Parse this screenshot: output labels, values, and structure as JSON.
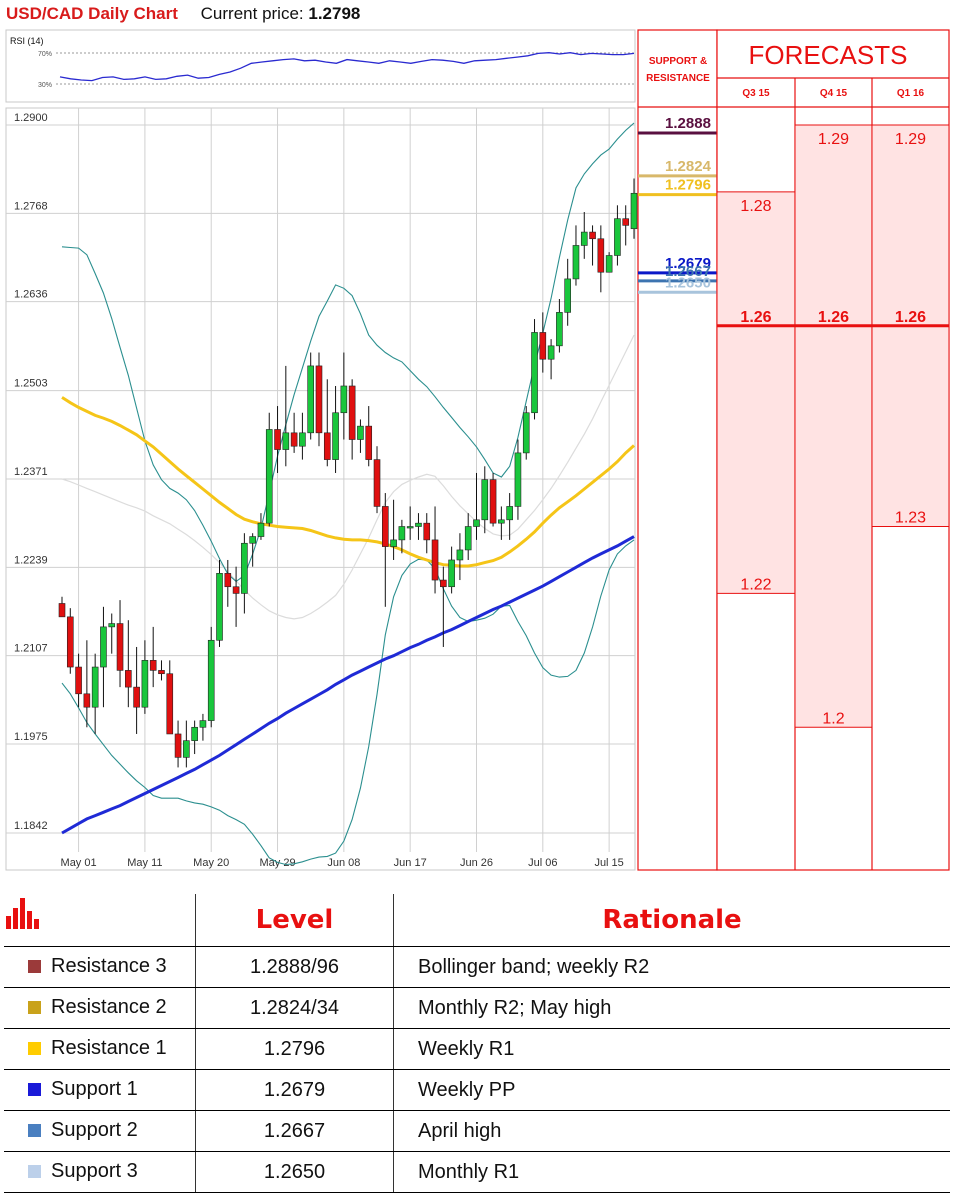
{
  "header": {
    "title": "USD/CAD Daily Chart",
    "price_label": "Current price:",
    "price_value": "1.2798"
  },
  "colors": {
    "accent": "#e81010",
    "bull": "#19c63c",
    "bear": "#e01010",
    "ma_fast": "#f5c518",
    "ma_slow": "#1f2ad6",
    "bollinger": "#2b8f8f",
    "forecast_fill": "#ffe3e3"
  },
  "chart_data": [
    {
      "type": "line",
      "title": "RSI (14)",
      "levels": [
        "70%",
        "30%"
      ],
      "ylim": [
        0,
        100
      ],
      "series": [
        {
          "values": [
            34,
            31,
            29,
            28,
            33,
            34,
            30,
            31,
            34,
            30,
            31,
            35,
            37,
            32,
            33,
            38,
            42,
            48,
            56,
            58,
            60,
            62,
            63,
            60,
            61,
            58,
            56,
            62,
            60,
            58,
            56,
            60,
            58,
            56,
            59,
            62,
            61,
            59,
            56,
            60,
            61,
            62,
            64,
            66,
            68,
            72,
            73,
            71,
            73,
            70,
            72,
            71,
            70,
            70,
            72
          ]
        }
      ]
    },
    {
      "type": "candlestick",
      "x_ticks": [
        "May 01",
        "May 11",
        "May 20",
        "May 29",
        "Jun 08",
        "Jun 17",
        "Jun 26",
        "Jul 06",
        "Jul 15"
      ],
      "y_ticks": [
        "1.2900",
        "1.2768",
        "1.2636",
        "1.2503",
        "1.2371",
        "1.2239",
        "1.2107",
        "1.1975",
        "1.1842"
      ],
      "ylim": [
        1.1842,
        1.29
      ],
      "candles": [
        [
          1.2185,
          1.2195,
          1.2165,
          1.2165
        ],
        [
          1.2165,
          1.2178,
          1.208,
          1.209
        ],
        [
          1.209,
          1.211,
          1.203,
          1.205
        ],
        [
          1.205,
          1.213,
          1.2,
          1.203
        ],
        [
          1.203,
          1.211,
          1.199,
          1.209
        ],
        [
          1.209,
          1.218,
          1.203,
          1.215
        ],
        [
          1.215,
          1.217,
          1.211,
          1.2155
        ],
        [
          1.2155,
          1.219,
          1.206,
          1.2085
        ],
        [
          1.2085,
          1.216,
          1.203,
          1.206
        ],
        [
          1.206,
          1.212,
          1.199,
          1.203
        ],
        [
          1.203,
          1.213,
          1.202,
          1.21
        ],
        [
          1.21,
          1.215,
          1.206,
          1.2085
        ],
        [
          1.2085,
          1.21,
          1.207,
          1.208
        ],
        [
          1.208,
          1.21,
          1.199,
          1.199
        ],
        [
          1.199,
          1.201,
          1.194,
          1.1955
        ],
        [
          1.1955,
          1.201,
          1.194,
          1.198
        ],
        [
          1.198,
          1.201,
          1.196,
          1.2
        ],
        [
          1.2,
          1.202,
          1.198,
          1.201
        ],
        [
          1.201,
          1.215,
          1.2,
          1.213
        ],
        [
          1.213,
          1.225,
          1.212,
          1.223
        ],
        [
          1.223,
          1.225,
          1.218,
          1.221
        ],
        [
          1.221,
          1.224,
          1.215,
          1.22
        ],
        [
          1.22,
          1.229,
          1.217,
          1.2275
        ],
        [
          1.2275,
          1.229,
          1.224,
          1.2285
        ],
        [
          1.2285,
          1.232,
          1.228,
          1.2305
        ],
        [
          1.2305,
          1.247,
          1.23,
          1.2445
        ],
        [
          1.2445,
          1.248,
          1.238,
          1.2415
        ],
        [
          1.2415,
          1.254,
          1.239,
          1.244
        ],
        [
          1.244,
          1.247,
          1.241,
          1.242
        ],
        [
          1.242,
          1.247,
          1.24,
          1.244
        ],
        [
          1.244,
          1.256,
          1.243,
          1.254
        ],
        [
          1.254,
          1.256,
          1.242,
          1.244
        ],
        [
          1.244,
          1.252,
          1.239,
          1.24
        ],
        [
          1.24,
          1.251,
          1.238,
          1.247
        ],
        [
          1.247,
          1.256,
          1.243,
          1.251
        ],
        [
          1.251,
          1.252,
          1.24,
          1.243
        ],
        [
          1.243,
          1.246,
          1.241,
          1.245
        ],
        [
          1.245,
          1.248,
          1.239,
          1.24
        ],
        [
          1.24,
          1.242,
          1.232,
          1.233
        ],
        [
          1.233,
          1.235,
          1.218,
          1.227
        ],
        [
          1.227,
          1.234,
          1.225,
          1.228
        ],
        [
          1.228,
          1.231,
          1.226,
          1.23
        ],
        [
          1.23,
          1.233,
          1.228,
          1.23
        ],
        [
          1.23,
          1.232,
          1.228,
          1.2305
        ],
        [
          1.2305,
          1.232,
          1.226,
          1.228
        ],
        [
          1.228,
          1.233,
          1.22,
          1.222
        ],
        [
          1.222,
          1.224,
          1.212,
          1.221
        ],
        [
          1.221,
          1.227,
          1.22,
          1.225
        ],
        [
          1.225,
          1.229,
          1.222,
          1.2265
        ],
        [
          1.2265,
          1.232,
          1.225,
          1.23
        ],
        [
          1.23,
          1.238,
          1.228,
          1.231
        ],
        [
          1.231,
          1.239,
          1.229,
          1.237
        ],
        [
          1.237,
          1.238,
          1.23,
          1.2305
        ],
        [
          1.2305,
          1.233,
          1.228,
          1.231
        ],
        [
          1.231,
          1.235,
          1.228,
          1.233
        ],
        [
          1.233,
          1.243,
          1.231,
          1.241
        ],
        [
          1.241,
          1.248,
          1.24,
          1.247
        ],
        [
          1.247,
          1.261,
          1.246,
          1.259
        ],
        [
          1.259,
          1.262,
          1.253,
          1.255
        ],
        [
          1.255,
          1.258,
          1.252,
          1.257
        ],
        [
          1.257,
          1.264,
          1.256,
          1.262
        ],
        [
          1.262,
          1.27,
          1.26,
          1.267
        ],
        [
          1.267,
          1.275,
          1.266,
          1.272
        ],
        [
          1.272,
          1.277,
          1.27,
          1.274
        ],
        [
          1.274,
          1.275,
          1.269,
          1.273
        ],
        [
          1.273,
          1.275,
          1.265,
          1.268
        ],
        [
          1.268,
          1.271,
          1.268,
          1.2705
        ],
        [
          1.2705,
          1.278,
          1.269,
          1.276
        ],
        [
          1.276,
          1.278,
          1.272,
          1.275
        ],
        [
          1.2745,
          1.282,
          1.273,
          1.2798
        ]
      ],
      "series": [
        {
          "name": "ma_fast",
          "values": [
            1.2493,
            1.2485,
            1.2478,
            1.2472,
            1.2466,
            1.2462,
            1.2457,
            1.2451,
            1.2444,
            1.2437,
            1.2428,
            1.2419,
            1.2408,
            1.2397,
            1.2386,
            1.2376,
            1.2366,
            1.2356,
            1.2346,
            1.2336,
            1.2327,
            1.2318,
            1.2311,
            1.2307,
            1.2304,
            1.2302,
            1.23,
            1.2299,
            1.2298,
            1.2297,
            1.2294,
            1.229,
            1.2286,
            1.2283,
            1.2281,
            1.228,
            1.228,
            1.2279,
            1.2277,
            1.2274,
            1.227,
            1.2265,
            1.2259,
            1.2254,
            1.225,
            1.2246,
            1.2243,
            1.2242,
            1.2241,
            1.2241,
            1.2243,
            1.2246,
            1.2249,
            1.2254,
            1.2262,
            1.2271,
            1.2281,
            1.2292,
            1.2305,
            1.2317,
            1.2328,
            1.2337,
            1.2346,
            1.2356,
            1.2366,
            1.2376,
            1.2386,
            1.2397,
            1.241,
            1.2421
          ]
        },
        {
          "name": "ma_slow",
          "values": [
            1.1842,
            1.1849,
            1.1856,
            1.1863,
            1.1868,
            1.1873,
            1.1878,
            1.1883,
            1.1889,
            1.1895,
            1.1901,
            1.1907,
            1.1913,
            1.1919,
            1.1925,
            1.1931,
            1.1937,
            1.1944,
            1.1951,
            1.1958,
            1.1966,
            1.1974,
            1.1982,
            1.199,
            1.1998,
            1.2006,
            1.2013,
            1.2021,
            1.2028,
            1.2035,
            1.2042,
            1.2049,
            1.2056,
            1.2064,
            1.2071,
            1.2078,
            1.2084,
            1.209,
            1.2096,
            1.2102,
            1.2107,
            1.2113,
            1.2119,
            1.2124,
            1.213,
            1.2135,
            1.2141,
            1.2146,
            1.2152,
            1.2158,
            1.2164,
            1.217,
            1.2176,
            1.2181,
            1.2187,
            1.2193,
            1.2199,
            1.2205,
            1.2211,
            1.2218,
            1.2225,
            1.2232,
            1.2239,
            1.2246,
            1.2253,
            1.2259,
            1.2265,
            1.2271,
            1.2278,
            1.2285
          ]
        },
        {
          "name": "bb_upper",
          "values": [
            1.2718,
            1.2717,
            1.2716,
            1.2706,
            1.2678,
            1.2649,
            1.2611,
            1.2568,
            1.2526,
            1.2477,
            1.2428,
            1.2392,
            1.237,
            1.2357,
            1.235,
            1.234,
            1.2324,
            1.2302,
            1.2278,
            1.2252,
            1.2229,
            1.2218,
            1.2227,
            1.2259,
            1.2297,
            1.235,
            1.2405,
            1.2452,
            1.2497,
            1.2537,
            1.2577,
            1.2614,
            1.2637,
            1.2661,
            1.2656,
            1.2645,
            1.2618,
            1.2586,
            1.2571,
            1.256,
            1.2552,
            1.2546,
            1.2533,
            1.252,
            1.2509,
            1.2494,
            1.2478,
            1.2463,
            1.2448,
            1.2434,
            1.2419,
            1.24,
            1.238,
            1.2374,
            1.239,
            1.2433,
            1.2487,
            1.2541,
            1.2589,
            1.2641,
            1.2702,
            1.2758,
            1.2806,
            1.2827,
            1.2842,
            1.2855,
            1.2864,
            1.2879,
            1.2892,
            1.2903
          ]
        },
        {
          "name": "bb_lower",
          "values": [
            1.2066,
            1.205,
            1.2029,
            1.2007,
            1.199,
            1.1974,
            1.1958,
            1.1945,
            1.1932,
            1.192,
            1.191,
            1.1898,
            1.1894,
            1.1894,
            1.1894,
            1.189,
            1.1887,
            1.1885,
            1.1881,
            1.1876,
            1.1868,
            1.1862,
            1.1855,
            1.184,
            1.1823,
            1.1805,
            1.1798,
            1.1795,
            1.1796,
            1.1799,
            1.1803,
            1.1806,
            1.1807,
            1.1812,
            1.183,
            1.1862,
            1.1909,
            1.1971,
            1.2049,
            1.2138,
            1.2195,
            1.2227,
            1.2244,
            1.2251,
            1.225,
            1.2237,
            1.2207,
            1.2181,
            1.2164,
            1.2158,
            1.216,
            1.2163,
            1.2169,
            1.2181,
            1.2182,
            1.2158,
            1.2137,
            1.2111,
            1.2089,
            1.2078,
            1.2075,
            1.2076,
            1.2085,
            1.2111,
            1.215,
            1.2196,
            1.2235,
            1.2259,
            1.2271,
            1.228
          ]
        },
        {
          "name": "bb_mid",
          "values": [
            1.2371,
            1.2367,
            1.2362,
            1.2357,
            1.2352,
            1.2347,
            1.2342,
            1.2337,
            1.2332,
            1.2328,
            1.2323,
            1.2316,
            1.231,
            1.2304,
            1.2296,
            1.2288,
            1.2279,
            1.2269,
            1.2258,
            1.2246,
            1.2232,
            1.2219,
            1.2205,
            1.2193,
            1.2183,
            1.2174,
            1.2168,
            1.2164,
            1.2162,
            1.2164,
            1.217,
            1.2178,
            1.2187,
            1.2197,
            1.2214,
            1.2235,
            1.2259,
            1.2283,
            1.231,
            1.2336,
            1.2352,
            1.2363,
            1.2369,
            1.2374,
            1.2378,
            1.2375,
            1.2361,
            1.2345,
            1.2331,
            1.2319,
            1.2307,
            1.2297,
            1.2289,
            1.2286,
            1.2287,
            1.2296,
            1.231,
            1.2324,
            1.234,
            1.2357,
            1.2376,
            1.2396,
            1.2417,
            1.2438,
            1.2461,
            1.2486,
            1.2511,
            1.2536,
            1.2561,
            1.2586
          ]
        }
      ]
    }
  ],
  "support_resistance": {
    "heading_line1": "SUPPORT &",
    "heading_line2": "RESISTANCE",
    "levels": [
      {
        "value": 1.2888,
        "label": "1.2888",
        "color": "#5a1040"
      },
      {
        "value": 1.2824,
        "label": "1.2824",
        "color": "#d8b86a"
      },
      {
        "value": 1.2796,
        "label": "1.2796",
        "color": "#f0c020"
      },
      {
        "value": 1.2679,
        "label": "1.2679",
        "color": "#0a18c8"
      },
      {
        "value": 1.2667,
        "label": "1.2667",
        "color": "#3d74b0"
      },
      {
        "value": 1.265,
        "label": "1.2650",
        "color": "#a8c4dc"
      }
    ]
  },
  "forecasts": {
    "title": "FORECASTS",
    "columns": [
      {
        "label": "Q3 15",
        "high": "1.28",
        "high_value": 1.28,
        "mid": "1.26",
        "mid_value": 1.26,
        "low": "1.22",
        "low_value": 1.22
      },
      {
        "label": "Q4 15",
        "high": "1.29",
        "high_value": 1.29,
        "mid": "1.26",
        "mid_value": 1.26,
        "low": "1.2",
        "low_value": 1.2
      },
      {
        "label": "Q1 16",
        "high": "1.29",
        "high_value": 1.29,
        "mid": "1.26",
        "mid_value": 1.26,
        "low": "1.23",
        "low_value": 1.23
      }
    ]
  },
  "table": {
    "headers": {
      "level": "Level",
      "rationale": "Rationale"
    },
    "header_icon": "bar-chart-icon",
    "rows": [
      {
        "name": "Resistance 3",
        "level": "1.2888/96",
        "rationale": "Bollinger band; weekly R2",
        "color": "#9b3a3a"
      },
      {
        "name": "Resistance 2",
        "level": "1.2824/34",
        "rationale": "Monthly R2; May high",
        "color": "#c9a21b"
      },
      {
        "name": "Resistance 1",
        "level": "1.2796",
        "rationale": "Weekly R1",
        "color": "#ffcc00"
      },
      {
        "name": "Support 1",
        "level": "1.2679",
        "rationale": "Weekly PP",
        "color": "#1a1ad8"
      },
      {
        "name": "Support 2",
        "level": "1.2667",
        "rationale": "April high",
        "color": "#4a7fc0"
      },
      {
        "name": "Support 3",
        "level": "1.2650",
        "rationale": "Monthly R1",
        "color": "#bcd0ea"
      }
    ]
  }
}
